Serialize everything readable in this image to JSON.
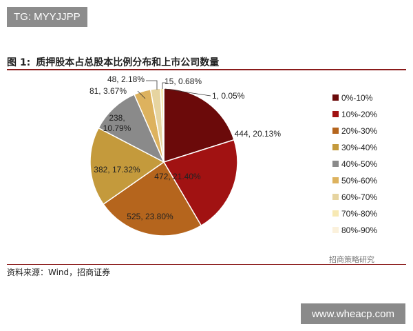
{
  "badge": "TG: MYYJJPP",
  "figure": {
    "number": "图 1:",
    "title": "质押股本占总股本比例分布和上市公司数量"
  },
  "source": "资料来源：Wind，招商证券",
  "wechat": "招商策略研究",
  "watermark": "www.wheacp.com",
  "chart_data": {
    "type": "pie",
    "title": "",
    "legend_position": "right",
    "categories": [
      "0%-10%",
      "10%-20%",
      "20%-30%",
      "30%-40%",
      "40%-50%",
      "50%-60%",
      "60%-70%",
      "70%-80%",
      "80%-90%"
    ],
    "values": [
      444,
      472,
      525,
      382,
      238,
      81,
      48,
      15,
      1
    ],
    "labels": [
      "444, 20.13%",
      "472, 21.40%",
      "525, 23.80%",
      "382, 17.32%",
      "238, 10.79%",
      "81, 3.67%",
      "48, 2.18%",
      "15, 0.68%",
      "1, 0.05%"
    ],
    "colors": [
      "#6b0a0a",
      "#a11212",
      "#b5651d",
      "#c49a3c",
      "#8a8a8a",
      "#ddb25e",
      "#e6d4a0",
      "#f7e9b4",
      "#fbf1dc"
    ]
  }
}
